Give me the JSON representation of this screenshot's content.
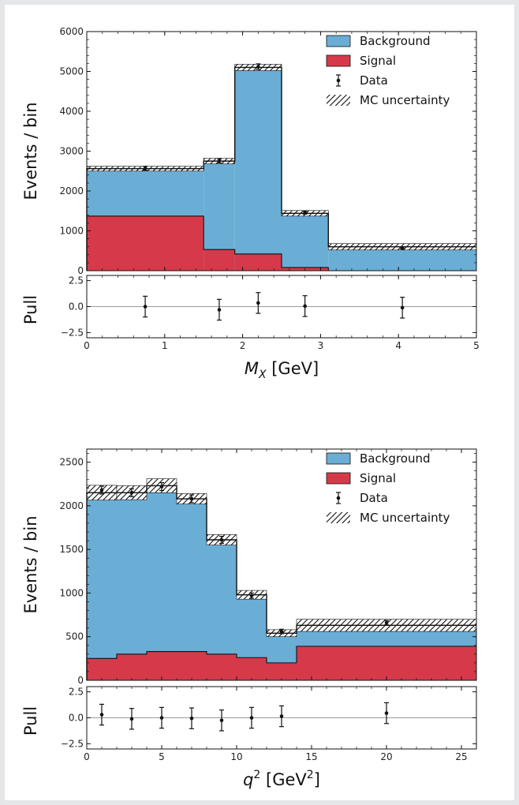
{
  "chart_data": [
    {
      "type": "histogram-stacked",
      "xlabel_var": "M",
      "xlabel_sub": "X",
      "xlabel_unit": " [GeV]",
      "ylabel": "Events / bin",
      "pull_label": "Pull",
      "xlim": [
        0,
        5
      ],
      "ylim": [
        0,
        6000
      ],
      "pull_ylim": [
        -3,
        3
      ],
      "xticks": [
        "0",
        "1",
        "2",
        "3",
        "4",
        "5"
      ],
      "yticks": [
        "0",
        "1000",
        "2000",
        "3000",
        "4000",
        "5000",
        "6000"
      ],
      "pull_ticks": [
        "2.5",
        "0.0",
        "−2.5"
      ],
      "bins": [
        0,
        1.5,
        1.9,
        2.5,
        3.1,
        5.0
      ],
      "series": [
        {
          "name": "Signal",
          "values": [
            1370,
            530,
            420,
            80,
            0
          ]
        },
        {
          "name": "Background",
          "values": [
            1190,
            2220,
            4680,
            1360,
            600
          ]
        }
      ],
      "mc_uncertainty": [
        60,
        70,
        80,
        70,
        80
      ],
      "data": {
        "x": [
          0.75,
          1.7,
          2.2,
          2.8,
          4.05
        ],
        "y": [
          2570,
          2760,
          5120,
          1460,
          570
        ],
        "err": [
          50,
          55,
          70,
          40,
          25
        ]
      },
      "pull": {
        "x": [
          0.75,
          1.7,
          2.2,
          2.8,
          4.05
        ],
        "y": [
          0.0,
          -0.3,
          0.35,
          0.05,
          -0.1
        ],
        "err": [
          1,
          1,
          1,
          1,
          1
        ]
      },
      "legend": [
        "Background",
        "Signal",
        "Data",
        "MC uncertainty"
      ],
      "legend_position": "top-right"
    },
    {
      "type": "histogram-stacked",
      "xlabel_var": "q",
      "xlabel_sup": "2",
      "xlabel_unit": " [GeV",
      "xlabel_unit_sup": "2",
      "xlabel_unit_end": "]",
      "ylabel": "Events / bin",
      "pull_label": "Pull",
      "xlim": [
        0,
        26
      ],
      "ylim": [
        0,
        2650
      ],
      "pull_ylim": [
        -3,
        3
      ],
      "xticks": [
        "0",
        "5",
        "10",
        "15",
        "20",
        "25"
      ],
      "yticks": [
        "0",
        "500",
        "1000",
        "1500",
        "2000",
        "2500"
      ],
      "pull_ticks": [
        "2.5",
        "0.0",
        "−2.5"
      ],
      "bins": [
        0,
        2,
        4,
        6,
        8,
        10,
        12,
        14,
        26
      ],
      "series": [
        {
          "name": "Signal",
          "values": [
            250,
            300,
            330,
            330,
            300,
            260,
            200,
            390
          ]
        },
        {
          "name": "Background",
          "values": [
            1900,
            1850,
            1900,
            1750,
            1310,
            720,
            340,
            240
          ]
        }
      ],
      "mc_uncertainty": [
        85,
        80,
        80,
        60,
        60,
        50,
        40,
        70
      ],
      "data": {
        "x": [
          1,
          3,
          5,
          7,
          9,
          11,
          13,
          20
        ],
        "y": [
          2180,
          2150,
          2220,
          2080,
          1610,
          970,
          560,
          660
        ],
        "err": [
          45,
          45,
          45,
          45,
          40,
          30,
          25,
          25
        ]
      },
      "pull": {
        "x": [
          1,
          3,
          5,
          7,
          9,
          11,
          13,
          20
        ],
        "y": [
          0.3,
          -0.1,
          0.0,
          -0.05,
          -0.25,
          0.0,
          0.15,
          0.45
        ],
        "err": [
          1,
          1,
          1,
          1,
          1,
          1,
          1,
          1
        ]
      },
      "legend": [
        "Background",
        "Signal",
        "Data",
        "MC uncertainty"
      ],
      "legend_position": "top-right"
    }
  ],
  "colors": {
    "background": "#6aaed6",
    "signal": "#d63a4a",
    "data": "#111111"
  }
}
